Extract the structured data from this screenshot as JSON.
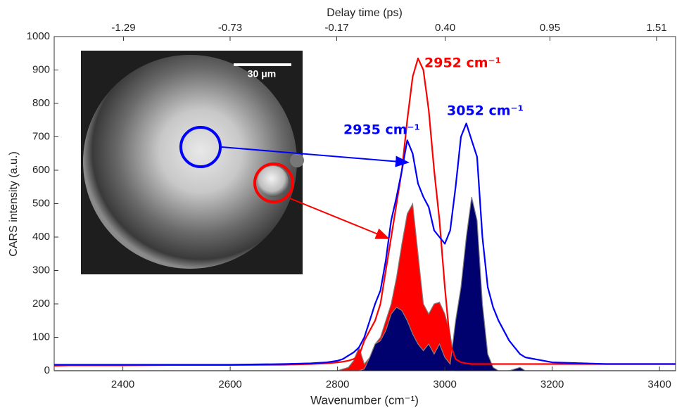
{
  "chart_data": {
    "type": "line",
    "x_label": "Wavenumber (cm⁻¹)",
    "y_label": "CARS intensity (a.u.)",
    "x2_label": "Delay time (ps)",
    "xlim": [
      2272,
      3430
    ],
    "xticks": [
      2400,
      2600,
      2800,
      3000,
      3200,
      3400
    ],
    "ylim": [
      0,
      1000
    ],
    "yticks": [
      0,
      100,
      200,
      300,
      400,
      500,
      600,
      700,
      800,
      900,
      1000
    ],
    "x2lim": [
      -1.654,
      1.61
    ],
    "x2ticks": [
      -1.29,
      -0.73,
      -0.17,
      {
        "value": 0.4,
        "label": "0.40"
      },
      0.95,
      1.51
    ],
    "x": [
      2272,
      2300,
      2400,
      2500,
      2600,
      2700,
      2750,
      2780,
      2800,
      2810,
      2820,
      2830,
      2840,
      2850,
      2860,
      2870,
      2880,
      2890,
      2900,
      2910,
      2920,
      2930,
      2940,
      2950,
      2960,
      2970,
      2980,
      2990,
      3000,
      3010,
      3020,
      3030,
      3040,
      3050,
      3060,
      3070,
      3080,
      3090,
      3100,
      3120,
      3140,
      3150,
      3200,
      3300,
      3400,
      3430
    ],
    "series": [
      {
        "color": "#ff0000",
        "fill": true,
        "outline": "#808080",
        "values": [
          0,
          0,
          0,
          0,
          0,
          0,
          0,
          0,
          0,
          5,
          10,
          30,
          70,
          20,
          40,
          80,
          100,
          150,
          200,
          280,
          380,
          470,
          500,
          350,
          200,
          170,
          200,
          205,
          170,
          110,
          0,
          0,
          0,
          0,
          0,
          0,
          0,
          0,
          0,
          0,
          0,
          0,
          0,
          0,
          0,
          0
        ]
      },
      {
        "color": "#00006e",
        "fill": true,
        "outline": "#808080",
        "values": [
          0,
          0,
          0,
          0,
          0,
          0,
          0,
          0,
          0,
          0,
          0,
          0,
          0,
          5,
          40,
          80,
          90,
          120,
          170,
          190,
          180,
          150,
          110,
          80,
          60,
          80,
          50,
          80,
          40,
          20,
          150,
          250,
          400,
          520,
          450,
          200,
          50,
          10,
          0,
          0,
          10,
          0,
          0,
          0,
          0,
          0
        ]
      },
      {
        "color": "#ff0000",
        "fill": false,
        "values": [
          15,
          16,
          16,
          17,
          17,
          18,
          20,
          22,
          25,
          27,
          30,
          35,
          45,
          90,
          120,
          150,
          200,
          300,
          400,
          500,
          600,
          750,
          880,
          935,
          900,
          780,
          600,
          450,
          250,
          80,
          35,
          25,
          22,
          20,
          20,
          20,
          20,
          20,
          20,
          20,
          20,
          20,
          20,
          20,
          20,
          20
        ]
      },
      {
        "color": "#0000ff",
        "fill": false,
        "values": [
          18,
          18,
          18,
          18,
          18,
          20,
          22,
          25,
          30,
          35,
          45,
          55,
          70,
          100,
          150,
          200,
          240,
          330,
          450,
          520,
          600,
          690,
          650,
          560,
          520,
          490,
          420,
          400,
          380,
          420,
          550,
          700,
          740,
          690,
          640,
          400,
          250,
          190,
          150,
          90,
          50,
          40,
          25,
          20,
          20,
          20
        ]
      }
    ],
    "annotations": [
      {
        "text": "2952 cm⁻¹",
        "color": "#ff0000"
      },
      {
        "text": "2935 cm⁻¹",
        "color": "#0000ff"
      },
      {
        "text": "3052 cm⁻¹",
        "color": "#0000ff"
      }
    ],
    "scale_bar": "30 μm"
  }
}
